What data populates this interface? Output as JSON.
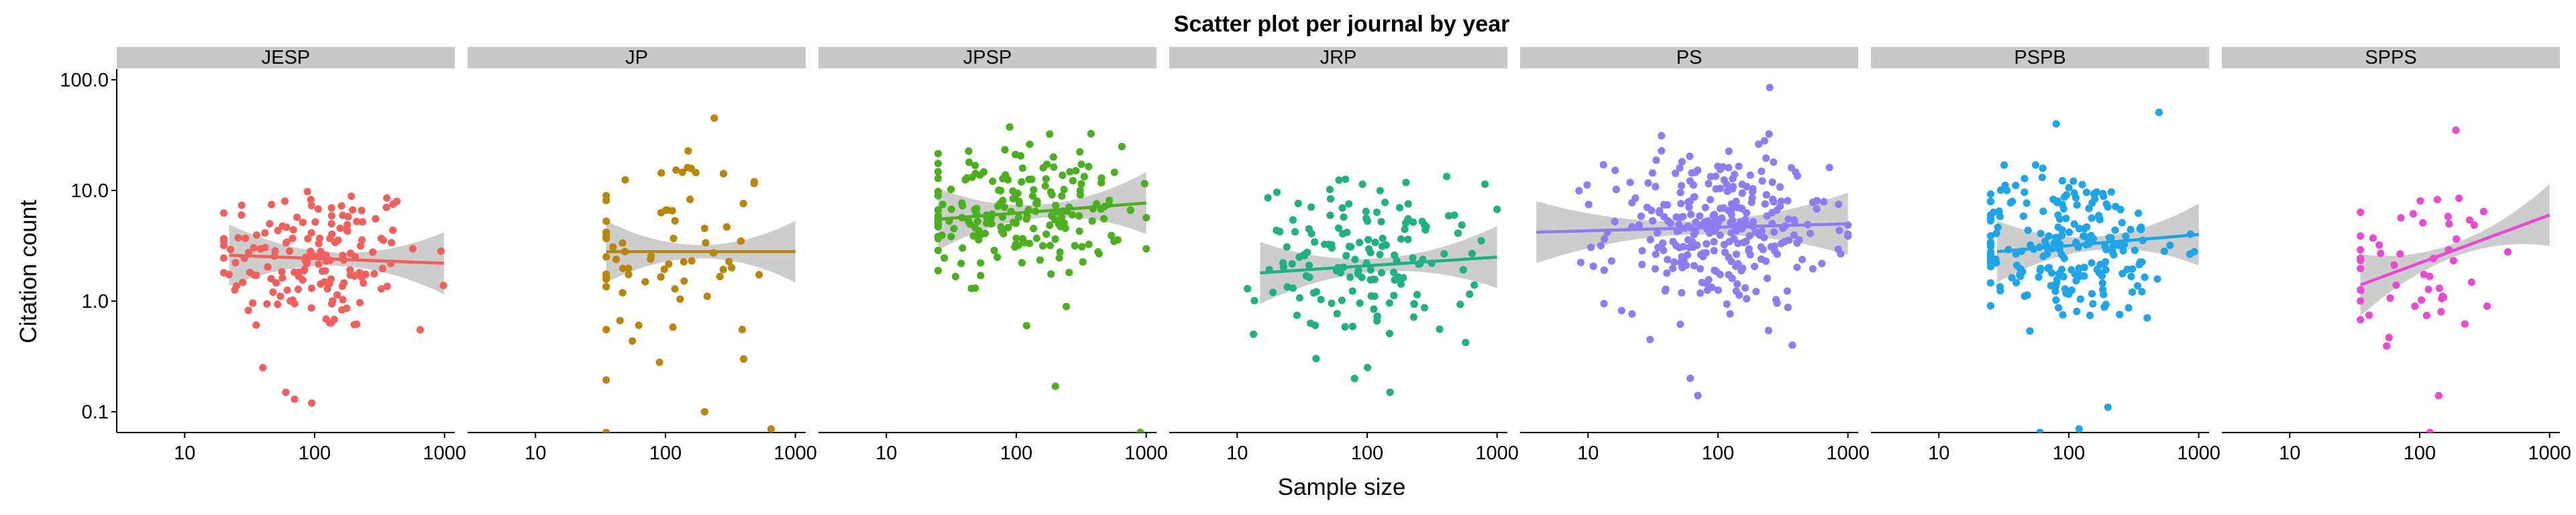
{
  "chart_data": {
    "type": "scatter",
    "title": "Scatter plot per journal by year",
    "xlabel": "Sample size",
    "ylabel": "Citation count",
    "x_scale": "log10",
    "y_scale": "log10",
    "xlim": [
      3,
      1200
    ],
    "ylim": [
      0.065,
      125
    ],
    "x_ticks": [
      "10",
      "100",
      "1000"
    ],
    "y_ticks": [
      "0.1",
      "1.0",
      "10.0",
      "100.0"
    ],
    "panel_strip_color": "#c8c8c8",
    "confidence_band_color": "#c8c8c8",
    "facets": [
      {
        "name": "JESP",
        "color": "#f0605c",
        "points_summary": {
          "n": 160,
          "x_range": [
            20,
            980
          ],
          "y_center": [
            2.5,
            0.35
          ],
          "outliers": [
            [
              60,
              0.15
            ],
            [
              70,
              0.13
            ],
            [
              95,
              0.12
            ],
            [
              650,
              0.55
            ],
            [
              40,
              0.25
            ]
          ]
        },
        "fit": {
          "x": [
            22,
            990
          ],
          "y": [
            2.6,
            2.2
          ]
        }
      },
      {
        "name": "JP",
        "color": "#b8860b",
        "points_summary": {
          "n": 70,
          "x_range": [
            35,
            1000
          ],
          "y_center": [
            2.8,
            0.5
          ],
          "outliers": [
            [
              200,
              0.1
            ],
            [
              650,
              0.07
            ],
            [
              90,
              0.28
            ],
            [
              400,
              0.3
            ]
          ]
        },
        "fit": {
          "x": [
            35,
            1000
          ],
          "y": [
            2.8,
            2.8
          ]
        }
      },
      {
        "name": "JPSP",
        "color": "#4caf1f",
        "points_summary": {
          "n": 200,
          "x_range": [
            25,
            1000
          ],
          "y_center": [
            6.5,
            0.3
          ],
          "outliers": [
            [
              200,
              0.17
            ],
            [
              900,
              0.065
            ],
            [
              120,
              0.6
            ]
          ]
        },
        "fit": {
          "x": [
            25,
            1000
          ],
          "y": [
            5.5,
            7.7
          ]
        }
      },
      {
        "name": "JRP",
        "color": "#21b085",
        "points_summary": {
          "n": 150,
          "x_range": [
            12,
            1000
          ],
          "y_center": [
            2.3,
            0.35
          ],
          "outliers": [
            [
              150,
              0.15
            ],
            [
              80,
              0.2
            ]
          ]
        },
        "fit": {
          "x": [
            15,
            1000
          ],
          "y": [
            1.8,
            2.5
          ]
        }
      },
      {
        "name": "PS",
        "color": "#8e7cf0",
        "points_summary": {
          "n": 300,
          "x_range": [
            4,
            1000
          ],
          "y_center": [
            4.5,
            0.35
          ],
          "outliers": [
            [
              70,
              0.14
            ],
            [
              30,
              0.45
            ],
            [
              250,
              85
            ]
          ]
        },
        "fit": {
          "x": [
            4,
            1000
          ],
          "y": [
            4.2,
            5.0
          ]
        }
      },
      {
        "name": "PSPB",
        "color": "#1ea5e8",
        "points_summary": {
          "n": 220,
          "x_range": [
            25,
            1000
          ],
          "y_center": [
            3.2,
            0.35
          ],
          "outliers": [
            [
              120,
              0.07
            ],
            [
              200,
              0.11
            ],
            [
              60,
              0.065
            ],
            [
              80,
              40
            ]
          ]
        },
        "fit": {
          "x": [
            28,
            1000
          ],
          "y": [
            2.8,
            4.0
          ]
        }
      },
      {
        "name": "SPPS",
        "color": "#e84ad2",
        "points_summary": {
          "n": 50,
          "x_range": [
            35,
            1000
          ],
          "y_center": [
            2.2,
            0.35
          ],
          "outliers": [
            [
              140,
              0.14
            ],
            [
              190,
              35
            ],
            [
              120,
              0.065
            ]
          ]
        },
        "fit": {
          "x": [
            35,
            1000
          ],
          "y": [
            1.4,
            6.0
          ]
        }
      }
    ]
  }
}
